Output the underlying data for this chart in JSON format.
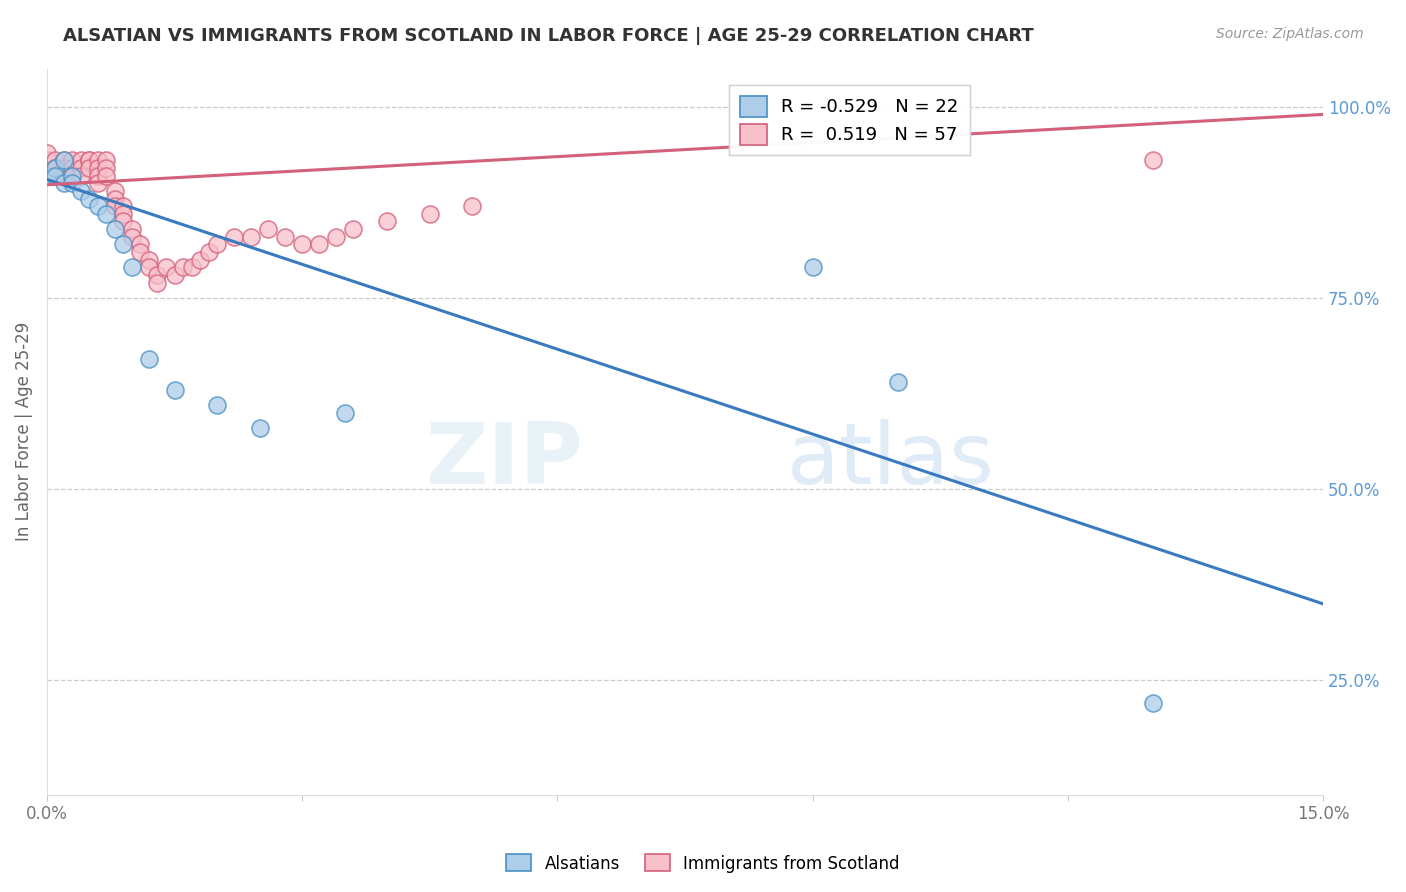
{
  "title": "ALSATIAN VS IMMIGRANTS FROM SCOTLAND IN LABOR FORCE | AGE 25-29 CORRELATION CHART",
  "source": "Source: ZipAtlas.com",
  "ylabel": "In Labor Force | Age 25-29",
  "xlim": [
    0.0,
    0.15
  ],
  "ylim": [
    0.1,
    1.05
  ],
  "yticks_right": [
    0.25,
    0.5,
    0.75,
    1.0
  ],
  "ytick_labels_right": [
    "25.0%",
    "50.0%",
    "75.0%",
    "100.0%"
  ],
  "legend_R_blue": "-0.529",
  "legend_N_blue": "22",
  "legend_R_pink": "0.519",
  "legend_N_pink": "57",
  "blue_color": "#aecde8",
  "pink_color": "#f7c0cb",
  "blue_edge_color": "#4a90c4",
  "pink_edge_color": "#d4607a",
  "blue_line_color": "#3a7abf",
  "pink_line_color": "#d4607a",
  "background_color": "#ffffff",
  "grid_color": "#cccccc",
  "right_axis_color": "#5b9bd5",
  "blue_scatter_x": [
    0.0,
    0.001,
    0.001,
    0.002,
    0.002,
    0.003,
    0.003,
    0.004,
    0.005,
    0.006,
    0.007,
    0.008,
    0.009,
    0.01,
    0.012,
    0.015,
    0.02,
    0.025,
    0.035,
    0.09,
    0.1,
    0.13
  ],
  "blue_scatter_y": [
    0.91,
    0.92,
    0.91,
    0.93,
    0.9,
    0.91,
    0.9,
    0.89,
    0.88,
    0.87,
    0.86,
    0.84,
    0.82,
    0.79,
    0.67,
    0.63,
    0.61,
    0.58,
    0.6,
    0.79,
    0.64,
    0.22
  ],
  "pink_scatter_x": [
    0.0,
    0.0,
    0.001,
    0.001,
    0.001,
    0.002,
    0.002,
    0.002,
    0.003,
    0.003,
    0.003,
    0.004,
    0.004,
    0.004,
    0.005,
    0.005,
    0.005,
    0.006,
    0.006,
    0.006,
    0.006,
    0.007,
    0.007,
    0.007,
    0.008,
    0.008,
    0.008,
    0.009,
    0.009,
    0.009,
    0.01,
    0.01,
    0.011,
    0.011,
    0.012,
    0.012,
    0.013,
    0.013,
    0.014,
    0.015,
    0.016,
    0.017,
    0.018,
    0.019,
    0.02,
    0.022,
    0.024,
    0.026,
    0.028,
    0.03,
    0.032,
    0.034,
    0.036,
    0.04,
    0.045,
    0.05,
    0.13
  ],
  "pink_scatter_y": [
    0.93,
    0.94,
    0.93,
    0.92,
    0.91,
    0.93,
    0.92,
    0.91,
    0.93,
    0.92,
    0.91,
    0.93,
    0.92,
    0.91,
    0.93,
    0.93,
    0.92,
    0.93,
    0.92,
    0.91,
    0.9,
    0.93,
    0.92,
    0.91,
    0.89,
    0.88,
    0.87,
    0.87,
    0.86,
    0.85,
    0.84,
    0.83,
    0.82,
    0.81,
    0.8,
    0.79,
    0.78,
    0.77,
    0.79,
    0.78,
    0.79,
    0.79,
    0.8,
    0.81,
    0.82,
    0.83,
    0.83,
    0.84,
    0.83,
    0.82,
    0.82,
    0.83,
    0.84,
    0.85,
    0.86,
    0.87,
    0.93
  ],
  "blue_trendline_x": [
    0.0,
    0.15
  ],
  "blue_trendline_y": [
    0.905,
    0.35
  ],
  "pink_trendline_x": [
    0.0,
    0.15
  ],
  "pink_trendline_y": [
    0.898,
    0.99
  ],
  "watermark_top": "ZIP",
  "watermark_bot": "atlas",
  "legend_label_blue": "Alsatians",
  "legend_label_pink": "Immigrants from Scotland"
}
